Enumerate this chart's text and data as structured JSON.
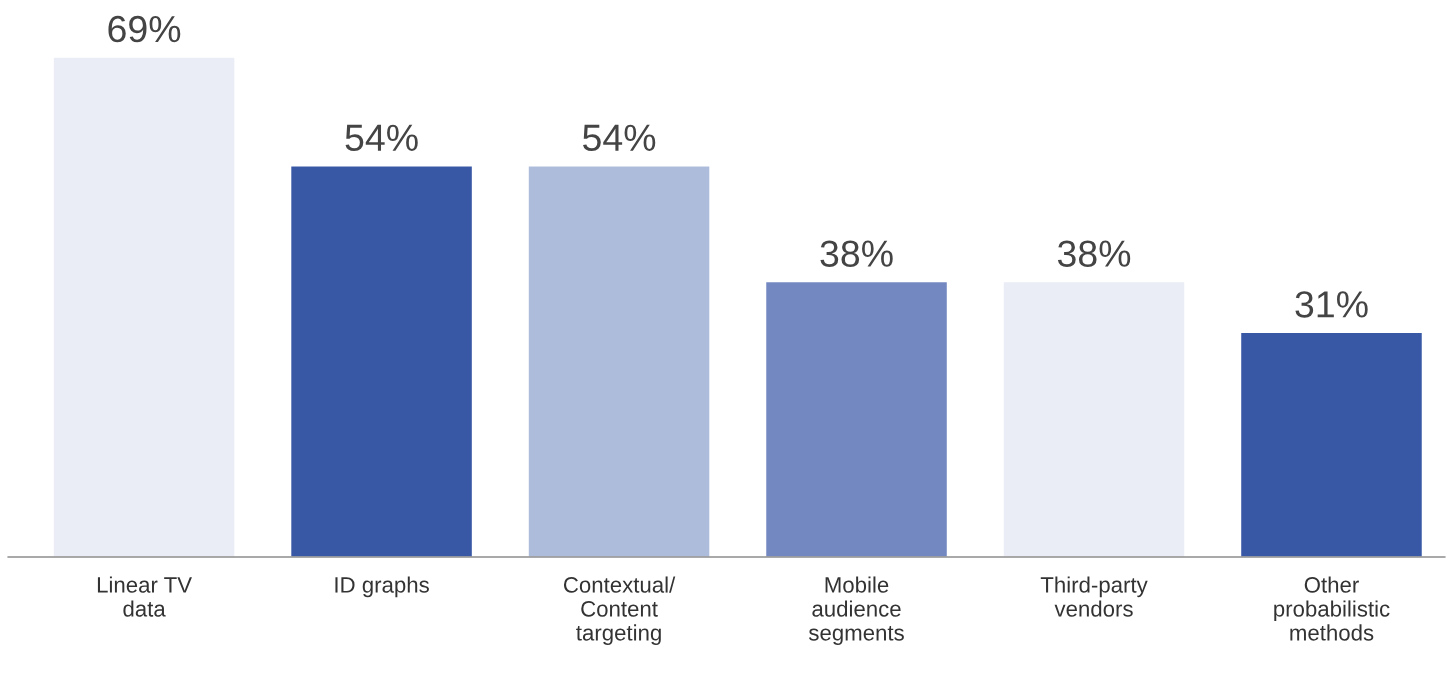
{
  "chart_data": {
    "type": "bar",
    "categories": [
      "Linear TV\ndata",
      "ID graphs",
      "Contextual/\nContent\ntargeting",
      "Mobile\naudience\nsegments",
      "Third-party\nvendors",
      "Other\nprobabilistic\nmethods"
    ],
    "values": [
      69,
      54,
      54,
      38,
      38,
      31
    ],
    "colors": [
      "#eaedf6",
      "#3858a6",
      "#aebcdc",
      "#7388c0",
      "#eaedf6",
      "#3858a6"
    ],
    "value_labels": [
      "69%",
      "54%",
      "54%",
      "38%",
      "38%",
      "31%"
    ],
    "grid": false,
    "legend": false
  }
}
